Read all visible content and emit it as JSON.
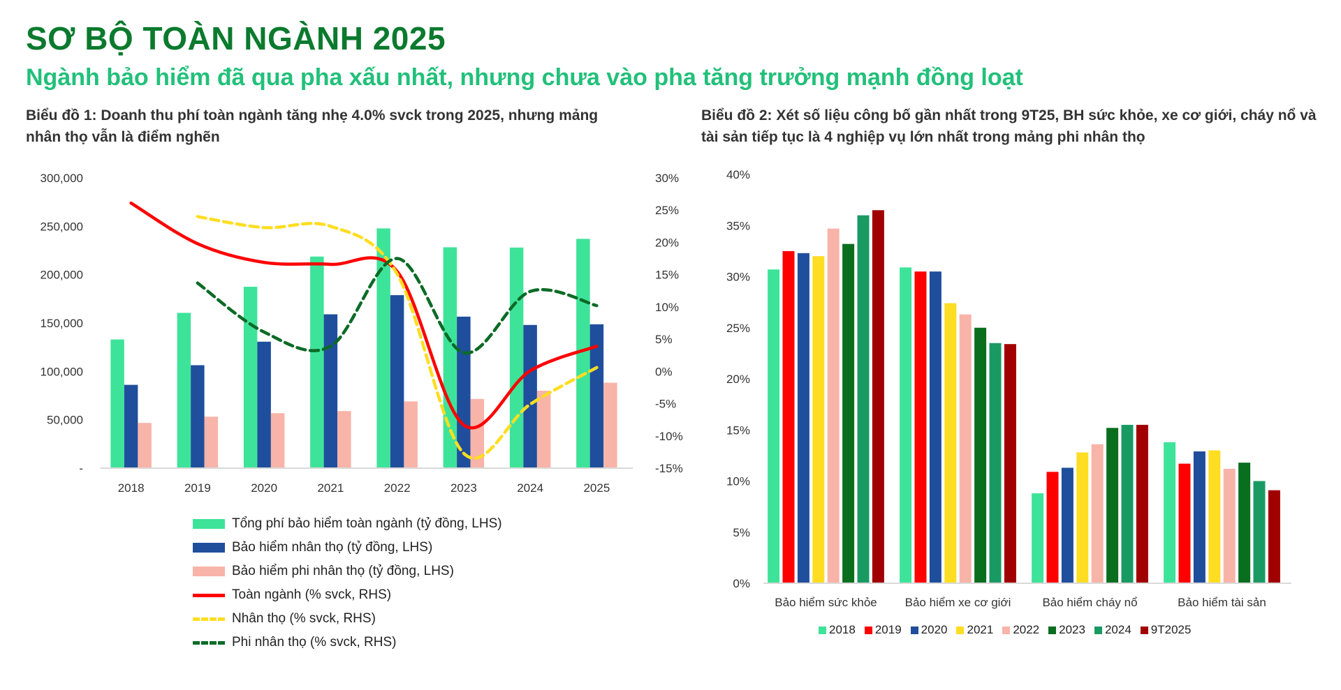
{
  "header": {
    "title": "SƠ BỘ TOÀN NGÀNH 2025",
    "subtitle": "Ngành bảo hiểm đã qua pha xấu nhất, nhưng chưa vào pha tăng trưởng mạnh đồng loạt"
  },
  "chart_data": [
    {
      "type": "bar+line",
      "title": "Biểu đồ 1: Doanh thu phí toàn ngành tăng nhẹ 4.0% svck trong 2025, nhưng mảng nhân thọ vẫn là điểm nghẽn",
      "categories": [
        "2018",
        "2019",
        "2020",
        "2021",
        "2022",
        "2023",
        "2024",
        "2025"
      ],
      "y_left": {
        "ylim": [
          0,
          300000
        ],
        "ticks": [
          "-",
          "50,000",
          "100,000",
          "150,000",
          "200,000",
          "250,000",
          "300,000"
        ]
      },
      "y_right": {
        "ylim": [
          -15,
          30
        ],
        "ticks": [
          "-15%",
          "-10%",
          "-5%",
          "0%",
          "5%",
          "10%",
          "15%",
          "20%",
          "25%",
          "30%"
        ]
      },
      "grid": false,
      "legend_placement": "bottom",
      "bar_series": [
        {
          "name": "Tổng phí bảo hiểm toàn ngành (tỷ đồng, LHS)",
          "color": "#3ee39a",
          "values": [
            133000,
            160500,
            187500,
            218700,
            247800,
            228300,
            228000,
            237000
          ]
        },
        {
          "name": "Bảo hiểm nhân thọ (tỷ đồng, LHS)",
          "color": "#1f4e9c",
          "values": [
            86100,
            106400,
            130700,
            159000,
            178800,
            156600,
            148000,
            148700
          ]
        },
        {
          "name": "Bảo hiểm phi nhân thọ (tỷ đồng, LHS)",
          "color": "#f8b4a8",
          "values": [
            46700,
            53200,
            56800,
            59000,
            69000,
            71500,
            80000,
            88300
          ]
        }
      ],
      "line_series": [
        {
          "name": "Toàn ngành (% svck, RHS)",
          "color": "#ff0000",
          "style": "solid",
          "values": [
            26.1,
            19.8,
            16.9,
            16.6,
            15.5,
            -8.3,
            0.1,
            3.9
          ]
        },
        {
          "name": "Nhân thọ (% svck, RHS)",
          "color": "#ffdd22",
          "style": "dashed",
          "values": [
            null,
            24.0,
            22.3,
            22.5,
            15.1,
            -12.7,
            -5.1,
            0.6
          ]
        },
        {
          "name": "Phi nhân thọ (% svck, RHS)",
          "color": "#0b6b26",
          "style": "dashed",
          "values": [
            null,
            13.7,
            6.1,
            3.9,
            17.5,
            2.9,
            12.4,
            10.2
          ]
        }
      ]
    },
    {
      "type": "bar",
      "title": "Biểu đồ 2: Xét số liệu công bố gần nhất trong 9T25, BH sức khỏe, xe cơ giới, cháy nổ và tài sản tiếp tục là 4 nghiệp vụ lớn nhất trong mảng phi nhân thọ",
      "categories": [
        "Bảo hiểm sức khỏe",
        "Bảo hiểm xe cơ giới",
        "Bảo hiểm cháy nổ",
        "Bảo hiểm tài sản"
      ],
      "ylim": [
        0,
        40
      ],
      "yticks": [
        "0%",
        "5%",
        "10%",
        "15%",
        "20%",
        "25%",
        "30%",
        "35%",
        "40%"
      ],
      "grid": false,
      "legend_placement": "bottom",
      "series": [
        {
          "name": "2018",
          "color": "#3ee39a",
          "values": [
            30.7,
            30.9,
            8.8,
            13.8
          ]
        },
        {
          "name": "2019",
          "color": "#ff0000",
          "values": [
            32.5,
            30.5,
            10.9,
            11.7
          ]
        },
        {
          "name": "2020",
          "color": "#1f4e9c",
          "values": [
            32.3,
            30.5,
            11.3,
            12.9
          ]
        },
        {
          "name": "2021",
          "color": "#ffdd22",
          "values": [
            32.0,
            27.4,
            12.8,
            13.0
          ]
        },
        {
          "name": "2022",
          "color": "#f8b4a8",
          "values": [
            34.7,
            26.3,
            13.6,
            11.2
          ]
        },
        {
          "name": "2023",
          "color": "#0a6e1f",
          "values": [
            33.2,
            25.0,
            15.2,
            11.8
          ]
        },
        {
          "name": "2024",
          "color": "#1a9a63",
          "values": [
            36.0,
            23.5,
            15.5,
            10.0
          ]
        },
        {
          "name": "9T2025",
          "color": "#a00000",
          "values": [
            36.5,
            23.4,
            15.5,
            9.1
          ]
        }
      ]
    }
  ]
}
